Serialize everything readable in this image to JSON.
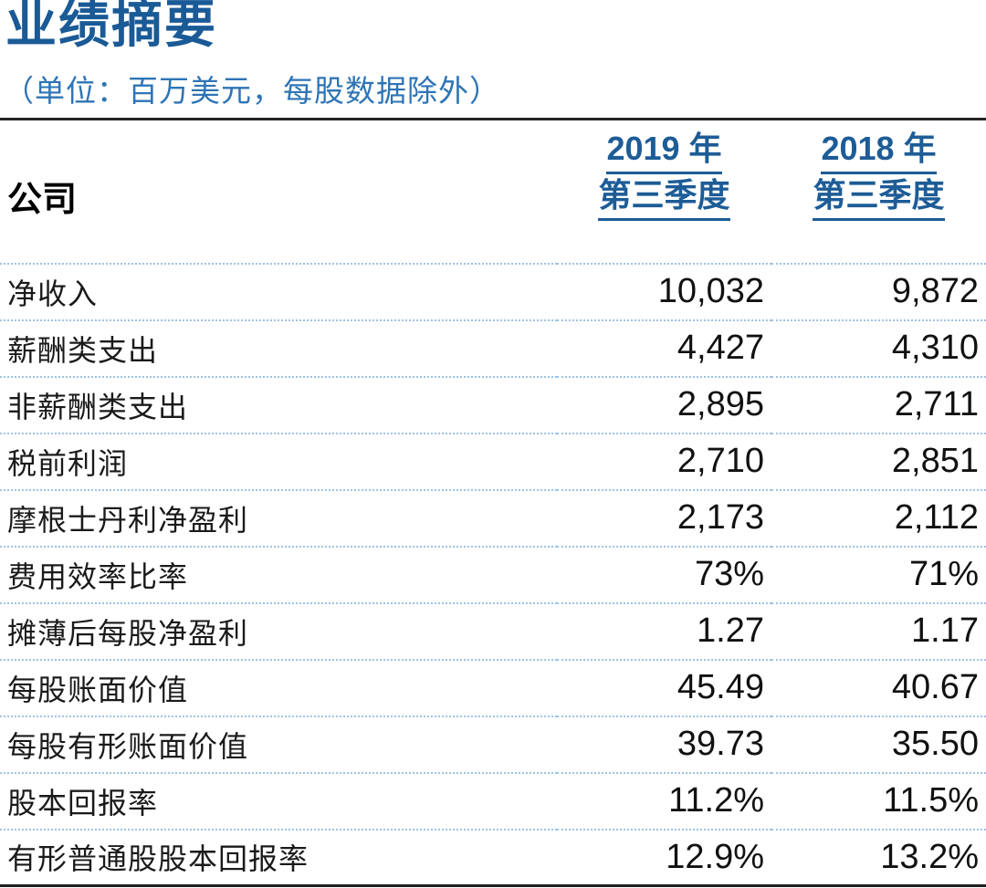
{
  "page": {
    "title": "业绩摘要",
    "unit_note": "（单位：百万美元，每股数据除外）"
  },
  "table": {
    "corner_label": "公司",
    "columns": [
      {
        "line1": "2019 年",
        "line2": "第三季度"
      },
      {
        "line1": "2018 年",
        "line2": "第三季度"
      }
    ],
    "rows": [
      {
        "label": "净收入",
        "q3_2019": "10,032",
        "q3_2018": "9,872"
      },
      {
        "label": "薪酬类支出",
        "q3_2019": "4,427",
        "q3_2018": "4,310"
      },
      {
        "label": "非薪酬类支出",
        "q3_2019": "2,895",
        "q3_2018": "2,711"
      },
      {
        "label": "税前利润",
        "q3_2019": "2,710",
        "q3_2018": "2,851"
      },
      {
        "label": "摩根士丹利净盈利",
        "q3_2019": "2,173",
        "q3_2018": "2,112"
      },
      {
        "label": "费用效率比率",
        "q3_2019": "73%",
        "q3_2018": "71%"
      },
      {
        "label": "摊薄后每股净盈利",
        "q3_2019": "1.27",
        "q3_2018": "1.17"
      },
      {
        "label": "每股账面价值",
        "q3_2019": "45.49",
        "q3_2018": "40.67"
      },
      {
        "label": "每股有形账面价值",
        "q3_2019": "39.73",
        "q3_2018": "35.50"
      },
      {
        "label": "股本回报率",
        "q3_2019": "11.2%",
        "q3_2018": "11.5%"
      },
      {
        "label": "有形普通股股本回报率",
        "q3_2019": "12.9%",
        "q3_2018": "13.2%"
      }
    ]
  },
  "colors": {
    "title_blue": "#1A5A96",
    "unit_note_blue": "#2E74B5",
    "header_blue": "#1D5C96",
    "dotted_divider_blue": "#9DC3E6",
    "rule_dark": "#1F1F1F",
    "text_dark": "#1A1A1A"
  }
}
